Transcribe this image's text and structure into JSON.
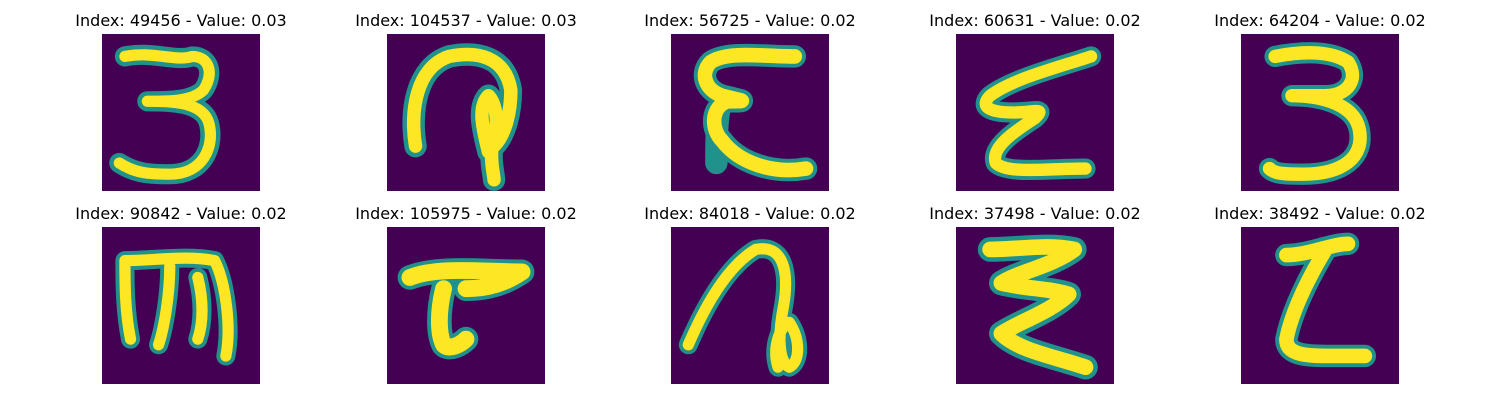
{
  "colors": {
    "background": "#440154",
    "stroke": "#fde725",
    "edge": "#21918c"
  },
  "panels": [
    {
      "title": "Index: 49456 - Value: 0.03",
      "index": 49456,
      "value": 0.03,
      "glyph": "3"
    },
    {
      "title": "Index: 104537 - Value: 0.03",
      "index": 104537,
      "value": 0.03,
      "glyph": "a"
    },
    {
      "title": "Index: 56725 - Value: 0.02",
      "index": 56725,
      "value": 0.02,
      "glyph": "E"
    },
    {
      "title": "Index: 60631 - Value: 0.02",
      "index": 60631,
      "value": 0.02,
      "glyph": "z"
    },
    {
      "title": "Index: 64204 - Value: 0.02",
      "index": 64204,
      "value": 0.02,
      "glyph": "3"
    },
    {
      "title": "Index: 90842 - Value: 0.02",
      "index": 90842,
      "value": 0.02,
      "glyph": "m"
    },
    {
      "title": "Index: 105975 - Value: 0.02",
      "index": 105975,
      "value": 0.02,
      "glyph": "T"
    },
    {
      "title": "Index: 84018 - Value: 0.02",
      "index": 84018,
      "value": 0.02,
      "glyph": "a"
    },
    {
      "title": "Index: 37498 - Value: 0.02",
      "index": 37498,
      "value": 0.02,
      "glyph": "Z"
    },
    {
      "title": "Index: 38492 - Value: 0.02",
      "index": 38492,
      "value": 0.02,
      "glyph": "L"
    }
  ]
}
